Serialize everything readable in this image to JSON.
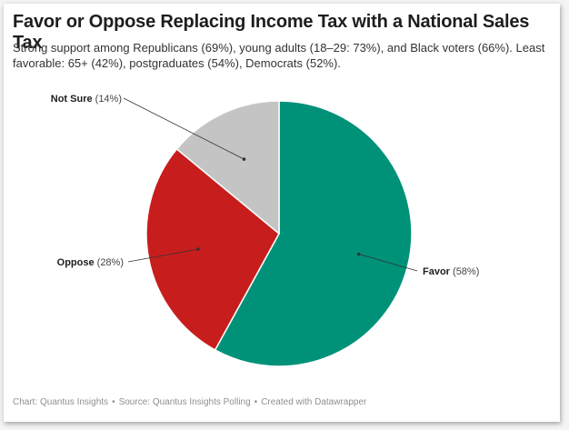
{
  "title": "Favor or Oppose Replacing Income Tax with a National Sales Tax",
  "subtitle": "Strong support among Republicans (69%), young adults (18–29: 73%), and Black voters (66%). Least favorable: 65+ (42%), postgraduates (54%), Democrats (52%).",
  "footer": {
    "chart_credit": "Chart: Quantus Insights",
    "source": "Source: Quantus Insights Polling",
    "tool": "Created with Datawrapper"
  },
  "chart_data": {
    "type": "pie",
    "slices": [
      {
        "label": "Favor",
        "value": 58,
        "value_text": "(58%)",
        "color": "#009179"
      },
      {
        "label": "Oppose",
        "value": 28,
        "value_text": "(28%)",
        "color": "#c71e1d"
      },
      {
        "label": "Not Sure",
        "value": 14,
        "value_text": "(14%)",
        "color": "#c4c4c4"
      }
    ]
  }
}
